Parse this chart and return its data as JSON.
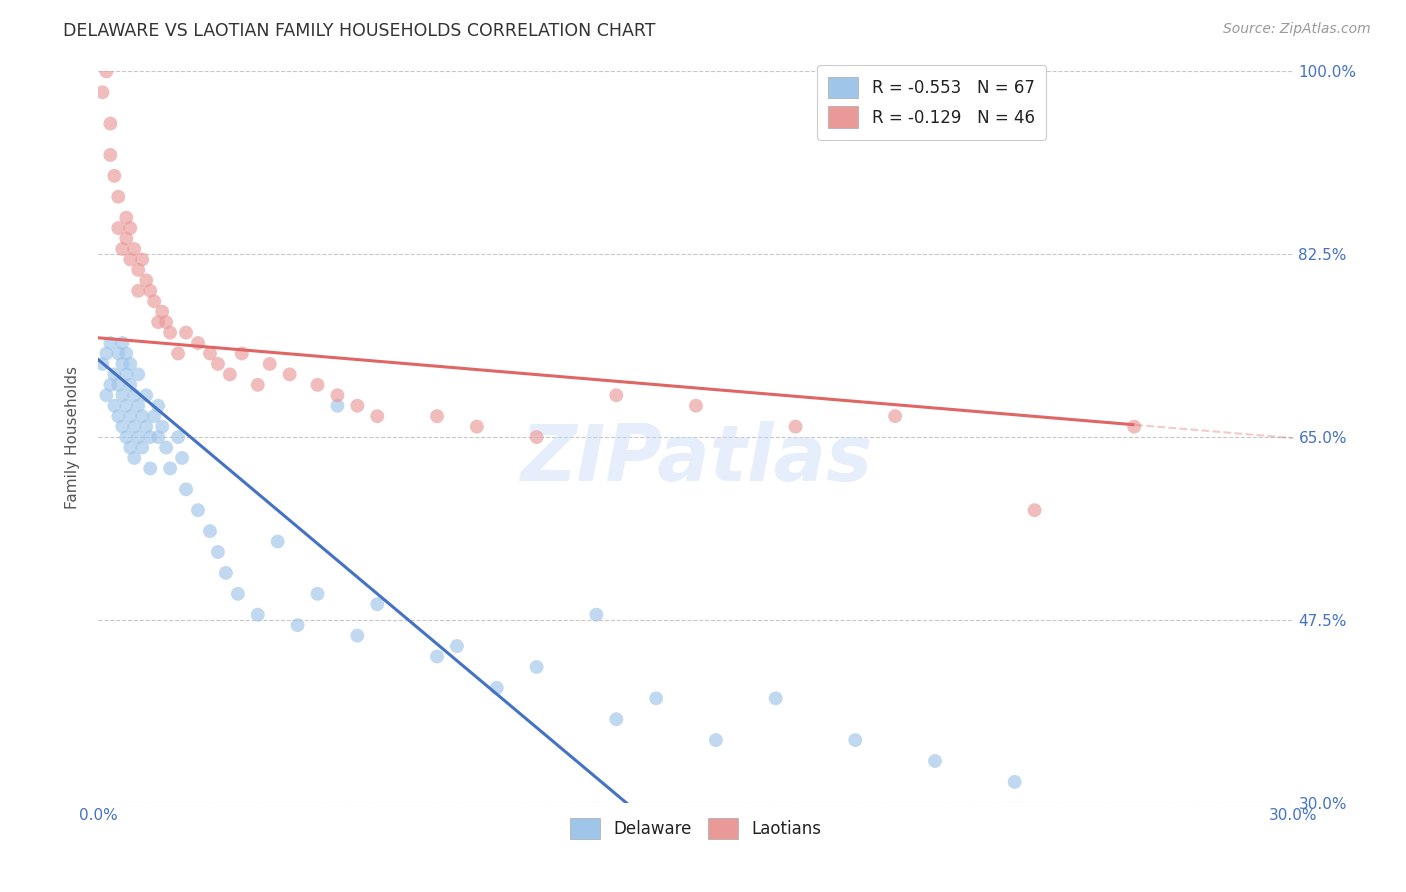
{
  "title": "DELAWARE VS LAOTIAN FAMILY HOUSEHOLDS CORRELATION CHART",
  "source": "Source: ZipAtlas.com",
  "ylabel": "Family Households",
  "background_color": "#ffffff",
  "grid_color": "#c8c8c8",
  "watermark_text": "ZIPatlas",
  "legend_label1": "R = -0.553   N = 67",
  "legend_label2": "R = -0.129   N = 46",
  "legend_color1": "#9fc5e8",
  "legend_color2": "#ea9999",
  "xmin": 0.0,
  "xmax": 0.3,
  "ymin": 0.3,
  "ymax": 1.0,
  "yticks": [
    0.3,
    0.475,
    0.65,
    0.825,
    1.0
  ],
  "ytick_labels": [
    "30.0%",
    "47.5%",
    "65.0%",
    "82.5%",
    "100.0%"
  ],
  "xticks": [
    0.0,
    0.05,
    0.1,
    0.15,
    0.2,
    0.25,
    0.3
  ],
  "xtick_labels": [
    "0.0%",
    "",
    "",
    "",
    "",
    "",
    "30.0%"
  ],
  "delaware_x": [
    0.001,
    0.002,
    0.002,
    0.003,
    0.003,
    0.004,
    0.004,
    0.005,
    0.005,
    0.005,
    0.006,
    0.006,
    0.006,
    0.006,
    0.007,
    0.007,
    0.007,
    0.007,
    0.008,
    0.008,
    0.008,
    0.008,
    0.009,
    0.009,
    0.009,
    0.01,
    0.01,
    0.01,
    0.011,
    0.011,
    0.012,
    0.012,
    0.013,
    0.013,
    0.014,
    0.015,
    0.015,
    0.016,
    0.017,
    0.018,
    0.02,
    0.021,
    0.022,
    0.025,
    0.028,
    0.03,
    0.032,
    0.035,
    0.04,
    0.045,
    0.05,
    0.055,
    0.06,
    0.065,
    0.07,
    0.085,
    0.09,
    0.1,
    0.11,
    0.125,
    0.13,
    0.14,
    0.155,
    0.17,
    0.19,
    0.21,
    0.23
  ],
  "delaware_y": [
    0.72,
    0.69,
    0.73,
    0.7,
    0.74,
    0.71,
    0.68,
    0.73,
    0.7,
    0.67,
    0.72,
    0.69,
    0.66,
    0.74,
    0.71,
    0.68,
    0.65,
    0.73,
    0.7,
    0.67,
    0.64,
    0.72,
    0.69,
    0.66,
    0.63,
    0.68,
    0.65,
    0.71,
    0.67,
    0.64,
    0.66,
    0.69,
    0.65,
    0.62,
    0.67,
    0.65,
    0.68,
    0.66,
    0.64,
    0.62,
    0.65,
    0.63,
    0.6,
    0.58,
    0.56,
    0.54,
    0.52,
    0.5,
    0.48,
    0.55,
    0.47,
    0.5,
    0.68,
    0.46,
    0.49,
    0.44,
    0.45,
    0.41,
    0.43,
    0.48,
    0.38,
    0.4,
    0.36,
    0.4,
    0.36,
    0.34,
    0.32
  ],
  "laotian_x": [
    0.001,
    0.002,
    0.003,
    0.003,
    0.004,
    0.005,
    0.005,
    0.006,
    0.007,
    0.007,
    0.008,
    0.008,
    0.009,
    0.01,
    0.01,
    0.011,
    0.012,
    0.013,
    0.014,
    0.015,
    0.016,
    0.017,
    0.018,
    0.02,
    0.022,
    0.025,
    0.028,
    0.03,
    0.033,
    0.036,
    0.04,
    0.043,
    0.048,
    0.055,
    0.06,
    0.065,
    0.07,
    0.085,
    0.095,
    0.11,
    0.13,
    0.15,
    0.175,
    0.2,
    0.235,
    0.26
  ],
  "laotian_y": [
    0.98,
    1.0,
    0.95,
    0.92,
    0.9,
    0.88,
    0.85,
    0.83,
    0.86,
    0.84,
    0.82,
    0.85,
    0.83,
    0.81,
    0.79,
    0.82,
    0.8,
    0.79,
    0.78,
    0.76,
    0.77,
    0.76,
    0.75,
    0.73,
    0.75,
    0.74,
    0.73,
    0.72,
    0.71,
    0.73,
    0.7,
    0.72,
    0.71,
    0.7,
    0.69,
    0.68,
    0.67,
    0.67,
    0.66,
    0.65,
    0.69,
    0.68,
    0.66,
    0.67,
    0.58,
    0.66
  ],
  "delaware_color": "#9fc5e8",
  "laotian_color": "#ea9999",
  "delaware_line_color": "#4472c4",
  "laotian_line_color": "#e06666",
  "delaware_line_intercept": 0.724,
  "delaware_line_slope": -3.2,
  "laotian_line_intercept": 0.745,
  "laotian_line_slope": -0.32,
  "dot_size": 100,
  "dot_alpha": 0.65
}
